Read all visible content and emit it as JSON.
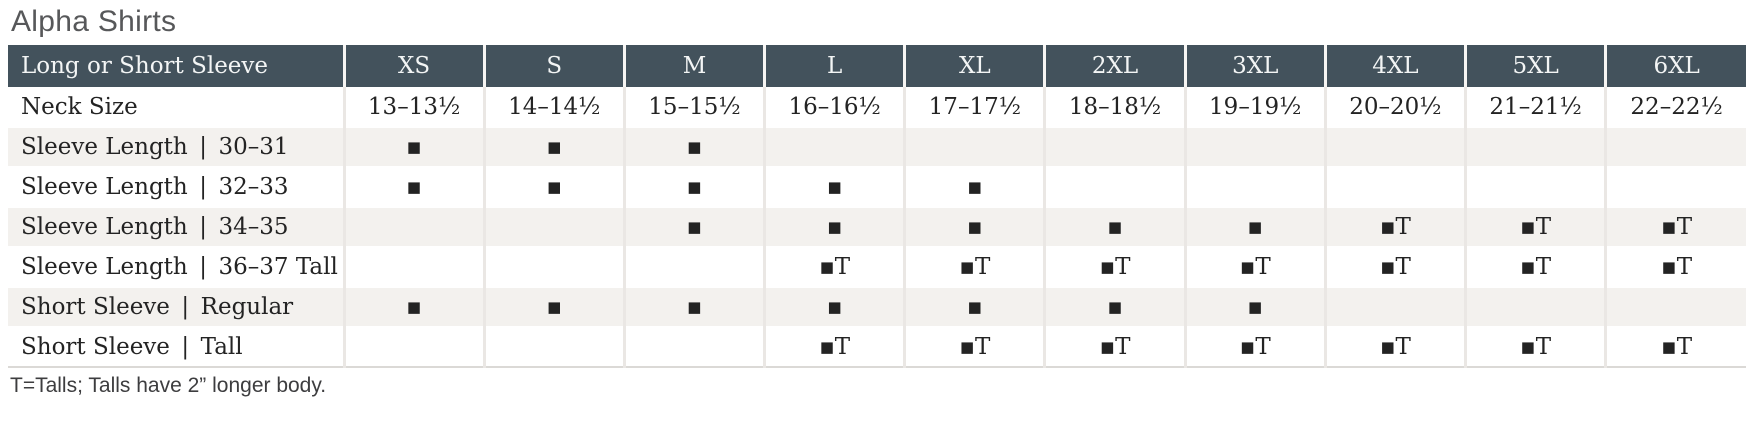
{
  "page": {
    "title": "Alpha Shirts",
    "footnote": "T=Talls; Talls have 2” longer body."
  },
  "colors": {
    "header_bg": "#43525c",
    "header_text": "#f3f5f5",
    "stripe_bg": "#f3f1ee",
    "body_text": "#232323",
    "title_text": "#57585a",
    "grid_line": "#eae7e4"
  },
  "legend": {
    "available_marker": "▪",
    "available_tall_marker": "▪T"
  },
  "table": {
    "columns": [
      "Long or Short Sleeve",
      "XS",
      "S",
      "M",
      "L",
      "XL",
      "2XL",
      "3XL",
      "4XL",
      "5XL",
      "6XL"
    ],
    "rows": [
      {
        "label": "Neck Size",
        "type": "values",
        "shaded": false,
        "cells": [
          "13–13½",
          "14–14½",
          "15–15½",
          "16–16½",
          "17–17½",
          "18–18½",
          "19–19½",
          "20–20½",
          "21–21½",
          "22–22½"
        ]
      },
      {
        "label": "Sleeve Length | 30–31",
        "type": "markers",
        "shaded": true,
        "cells": [
          "▪",
          "▪",
          "▪",
          "",
          "",
          "",
          "",
          "",
          "",
          ""
        ]
      },
      {
        "label": "Sleeve Length | 32–33",
        "type": "markers",
        "shaded": false,
        "cells": [
          "▪",
          "▪",
          "▪",
          "▪",
          "▪",
          "",
          "",
          "",
          "",
          ""
        ]
      },
      {
        "label": "Sleeve Length | 34–35",
        "type": "markers",
        "shaded": true,
        "cells": [
          "",
          "",
          "▪",
          "▪",
          "▪",
          "▪",
          "▪",
          "▪T",
          "▪T",
          "▪T"
        ]
      },
      {
        "label": "Sleeve Length | 36–37 Tall",
        "type": "markers",
        "shaded": false,
        "cells": [
          "",
          "",
          "",
          "▪T",
          "▪T",
          "▪T",
          "▪T",
          "▪T",
          "▪T",
          "▪T"
        ]
      },
      {
        "label": "Short Sleeve | Regular",
        "type": "markers",
        "shaded": true,
        "cells": [
          "▪",
          "▪",
          "▪",
          "▪",
          "▪",
          "▪",
          "▪",
          "",
          "",
          ""
        ]
      },
      {
        "label": "Short Sleeve | Tall",
        "type": "markers",
        "shaded": false,
        "cells": [
          "",
          "",
          "",
          "▪T",
          "▪T",
          "▪T",
          "▪T",
          "▪T",
          "▪T",
          "▪T"
        ]
      }
    ]
  }
}
